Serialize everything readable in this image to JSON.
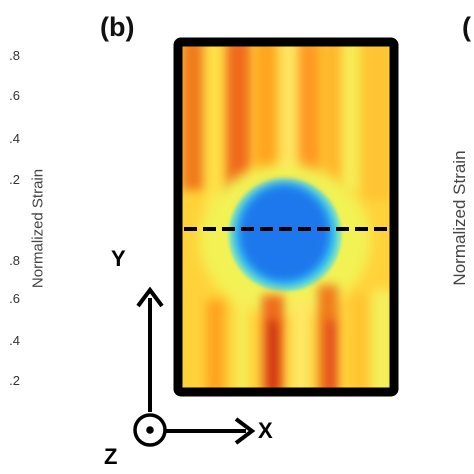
{
  "left_axis": {
    "ticks_upper": [
      ".8",
      ".6",
      ".4",
      ".2"
    ],
    "ticks_lower": [
      ".8",
      ".6",
      ".4",
      ".2"
    ],
    "label": "Normalized Strain"
  },
  "panel": {
    "label": "(b)",
    "colormap": [
      "#0b4fd6",
      "#1e90ff",
      "#3cc8f0",
      "#8ee6b0",
      "#f2f254",
      "#ffd23a",
      "#ffa31a",
      "#f06a1a",
      "#c81c10"
    ]
  },
  "axes": {
    "y_label": "Y",
    "x_label": "X",
    "z_label": "Z"
  },
  "right_panel": {
    "label_fragment": "(",
    "axis_label": "Normalized Strain"
  },
  "colors": {
    "frame": "#000000",
    "text": "#111111",
    "background": "#ffffff"
  }
}
